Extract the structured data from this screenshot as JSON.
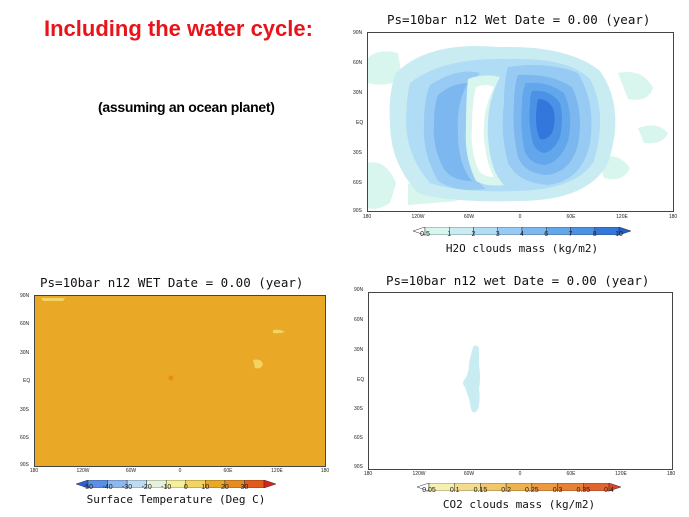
{
  "slide": {
    "title": "Including the water cycle:",
    "subtitle": "(assuming an ocean planet)"
  },
  "lat_labels": [
    "90N",
    "60N",
    "30N",
    "EQ",
    "30S",
    "60S",
    "90S"
  ],
  "lon_labels": [
    "180",
    "120W",
    "60W",
    "0",
    "60E",
    "120E",
    "180"
  ],
  "panels": {
    "h2o": {
      "title": "Ps=10bar n12 Wet   Date = 0.00 (year)",
      "colorbar_title": "H2O clouds mass (kg/m2)",
      "colorbar_ticks": [
        "0.5",
        "1",
        "2",
        "3",
        "4",
        "6",
        "7",
        "8",
        "10"
      ],
      "colors": [
        "#ffffff",
        "#d8f5ee",
        "#c9ecf3",
        "#b1dcf5",
        "#97cbf4",
        "#7db7ef",
        "#62a6ec",
        "#4b92e6",
        "#3477dc",
        "#1e5fd2"
      ]
    },
    "temp": {
      "title": "Ps=10bar n12 WET   Date = 0.00 (year)",
      "colorbar_title": "Surface Temperature (Deg C)",
      "colorbar_ticks": [
        "-50",
        "-40",
        "-30",
        "-20",
        "-10",
        "0",
        "10",
        "20",
        "30"
      ],
      "colors": [
        "#2d5fdc",
        "#5a8ee8",
        "#8cb8f0",
        "#bcdcf6",
        "#e4f3d8",
        "#f5ef9a",
        "#f3d460",
        "#e9a826",
        "#e98b1e",
        "#e45a18",
        "#d8201a"
      ]
    },
    "co2": {
      "title": "Ps=10bar n12 wet   Date = 0.00 (year)",
      "colorbar_title": "CO2 clouds mass (kg/m2)",
      "colorbar_ticks": [
        "0.05",
        "0.1",
        "0.15",
        "0.2",
        "0.25",
        "0.3",
        "0.35",
        "0.4"
      ],
      "colors": [
        "#ffffff",
        "#f6f0b0",
        "#f3dd8c",
        "#f0c86a",
        "#eeb24e",
        "#ec9a40",
        "#e88036",
        "#e4642e",
        "#de4428"
      ]
    }
  }
}
